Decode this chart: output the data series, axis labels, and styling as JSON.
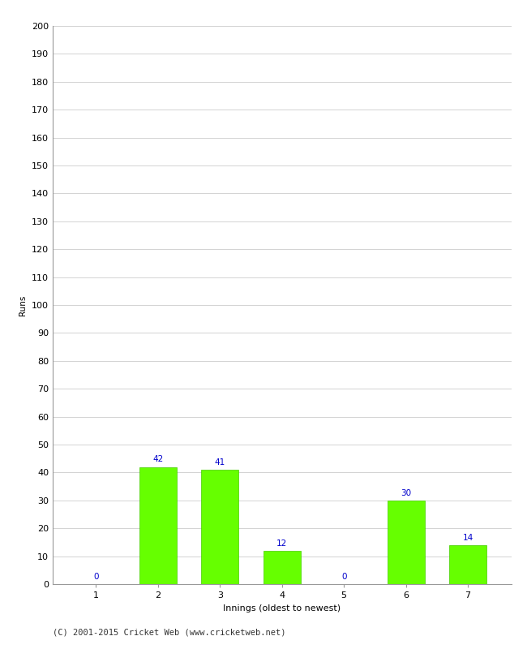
{
  "categories": [
    "1",
    "2",
    "3",
    "4",
    "5",
    "6",
    "7"
  ],
  "values": [
    0,
    42,
    41,
    12,
    0,
    30,
    14
  ],
  "bar_color": "#66ff00",
  "bar_edge_color": "#44cc00",
  "xlabel": "Innings (oldest to newest)",
  "ylabel": "Runs",
  "ylim": [
    0,
    200
  ],
  "yticks": [
    0,
    10,
    20,
    30,
    40,
    50,
    60,
    70,
    80,
    90,
    100,
    110,
    120,
    130,
    140,
    150,
    160,
    170,
    180,
    190,
    200
  ],
  "label_color": "#0000cc",
  "label_fontsize": 7.5,
  "axis_fontsize": 8,
  "ylabel_fontsize": 7.5,
  "xlabel_fontsize": 8,
  "footer_text": "(C) 2001-2015 Cricket Web (www.cricketweb.net)",
  "footer_fontsize": 7.5,
  "background_color": "#ffffff",
  "grid_color": "#cccccc"
}
